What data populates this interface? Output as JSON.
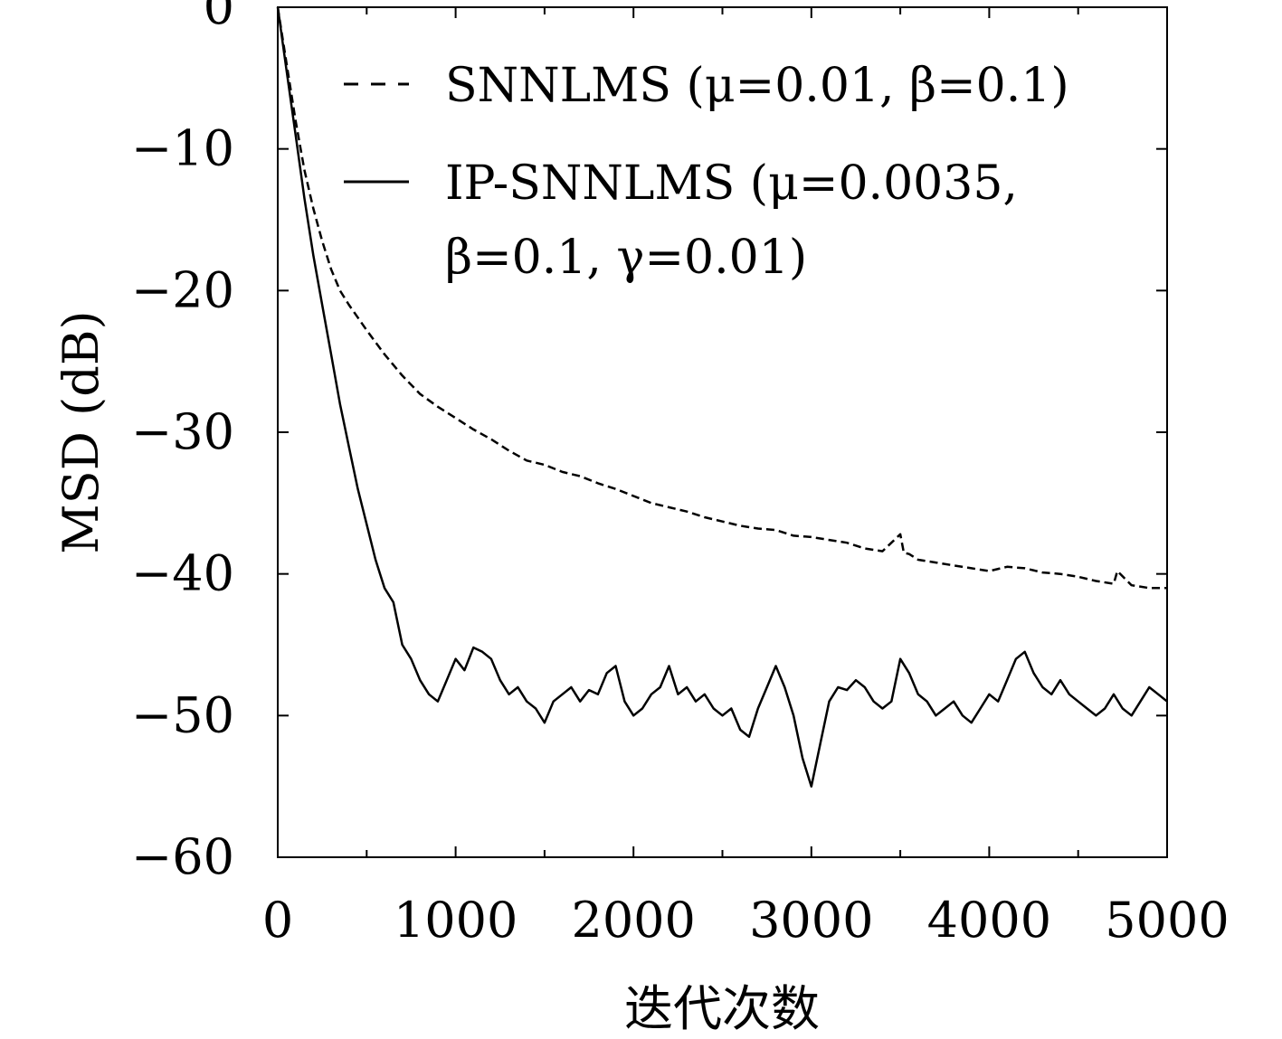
{
  "chart_data": {
    "type": "line",
    "title": "",
    "xlabel": "迭代次数",
    "ylabel": "MSD (dB)",
    "xlim": [
      0,
      5000
    ],
    "ylim": [
      -60,
      0
    ],
    "xticks": [
      0,
      1000,
      2000,
      3000,
      4000,
      5000
    ],
    "yticks": [
      0,
      -10,
      -20,
      -30,
      -40,
      -50,
      -60
    ],
    "xtick_labels": [
      "0",
      "1000",
      "2000",
      "3000",
      "4000",
      "5000"
    ],
    "ytick_labels": [
      "0",
      "−10",
      "−20",
      "−30",
      "−40",
      "−50",
      "−60"
    ],
    "grid": false,
    "legend_position": "top-right",
    "series": [
      {
        "name": "SNNLMS (μ=0.01, β=0.1)",
        "style": "dashed",
        "color": "#000000",
        "x": [
          0,
          50,
          100,
          150,
          200,
          250,
          300,
          350,
          400,
          500,
          600,
          700,
          800,
          900,
          1000,
          1100,
          1200,
          1300,
          1400,
          1500,
          1600,
          1700,
          1800,
          1900,
          2000,
          2100,
          2200,
          2300,
          2400,
          2500,
          2600,
          2700,
          2800,
          2900,
          3000,
          3100,
          3200,
          3300,
          3400,
          3500,
          3520,
          3550,
          3600,
          3700,
          3800,
          3900,
          4000,
          4100,
          4200,
          4300,
          4400,
          4500,
          4600,
          4700,
          4720,
          4800,
          4900,
          5000
        ],
        "y": [
          0,
          -4,
          -8,
          -11.5,
          -14.2,
          -16.5,
          -18.5,
          -20,
          -21,
          -22.8,
          -24.5,
          -26,
          -27.3,
          -28.2,
          -29,
          -29.8,
          -30.5,
          -31.3,
          -32,
          -32.3,
          -32.8,
          -33.1,
          -33.6,
          -34,
          -34.5,
          -35,
          -35.3,
          -35.6,
          -36,
          -36.3,
          -36.6,
          -36.8,
          -36.9,
          -37.3,
          -37.4,
          -37.6,
          -37.8,
          -38.2,
          -38.4,
          -37.2,
          -38.5,
          -38.6,
          -39,
          -39.2,
          -39.4,
          -39.6,
          -39.8,
          -39.5,
          -39.6,
          -39.9,
          -40,
          -40.2,
          -40.5,
          -40.7,
          -39.8,
          -40.8,
          -41,
          -41
        ]
      },
      {
        "name": "IP-SNNLMS (μ=0.0035, β=0.1, γ=0.01)",
        "style": "solid",
        "color": "#000000",
        "x": [
          0,
          50,
          100,
          150,
          200,
          250,
          300,
          350,
          400,
          450,
          500,
          550,
          600,
          650,
          700,
          750,
          800,
          850,
          900,
          950,
          1000,
          1050,
          1100,
          1150,
          1200,
          1250,
          1300,
          1350,
          1400,
          1450,
          1500,
          1550,
          1600,
          1650,
          1700,
          1750,
          1800,
          1850,
          1900,
          1950,
          2000,
          2050,
          2100,
          2150,
          2200,
          2250,
          2300,
          2350,
          2400,
          2450,
          2500,
          2550,
          2600,
          2650,
          2700,
          2750,
          2800,
          2850,
          2900,
          2950,
          3000,
          3050,
          3100,
          3150,
          3200,
          3250,
          3300,
          3350,
          3400,
          3450,
          3500,
          3550,
          3600,
          3650,
          3700,
          3750,
          3800,
          3850,
          3900,
          3950,
          4000,
          4050,
          4100,
          4150,
          4200,
          4250,
          4300,
          4350,
          4400,
          4450,
          4500,
          4550,
          4600,
          4650,
          4700,
          4750,
          4800,
          4850,
          4900,
          4950,
          5000
        ],
        "y": [
          0,
          -4.5,
          -9,
          -13.5,
          -17.5,
          -21,
          -24.5,
          -28,
          -31,
          -34,
          -36.5,
          -39,
          -41,
          -42,
          -45,
          -46,
          -47.5,
          -48.5,
          -49,
          -47.5,
          -46,
          -46.8,
          -45.2,
          -45.5,
          -46,
          -47.5,
          -48.5,
          -48,
          -49,
          -49.5,
          -50.5,
          -49,
          -48.5,
          -48,
          -49,
          -48.2,
          -48.5,
          -47,
          -46.5,
          -49,
          -50,
          -49.5,
          -48.5,
          -48,
          -46.5,
          -48.5,
          -48,
          -49,
          -48.5,
          -49.5,
          -50,
          -49.5,
          -51,
          -51.5,
          -49.5,
          -48,
          -46.5,
          -48,
          -50,
          -53,
          -55,
          -52,
          -49,
          -48,
          -48.2,
          -47.5,
          -48,
          -49,
          -49.5,
          -49,
          -46,
          -47,
          -48.5,
          -49,
          -50,
          -49.5,
          -49,
          -50,
          -50.5,
          -49.5,
          -48.5,
          -49,
          -47.5,
          -46,
          -45.5,
          -47,
          -48,
          -48.5,
          -47.5,
          -48.5,
          -49,
          -49.5,
          -50,
          -49.5,
          -48.5,
          -49.5,
          -50,
          -49,
          -48,
          -48.5,
          -49
        ]
      }
    ]
  },
  "legend": {
    "line1": "SNNLMS (μ=0.01, β=0.1)",
    "line2a": "IP-SNNLMS (μ=0.0035,",
    "line2b": "β=0.1, γ=0.01)"
  }
}
